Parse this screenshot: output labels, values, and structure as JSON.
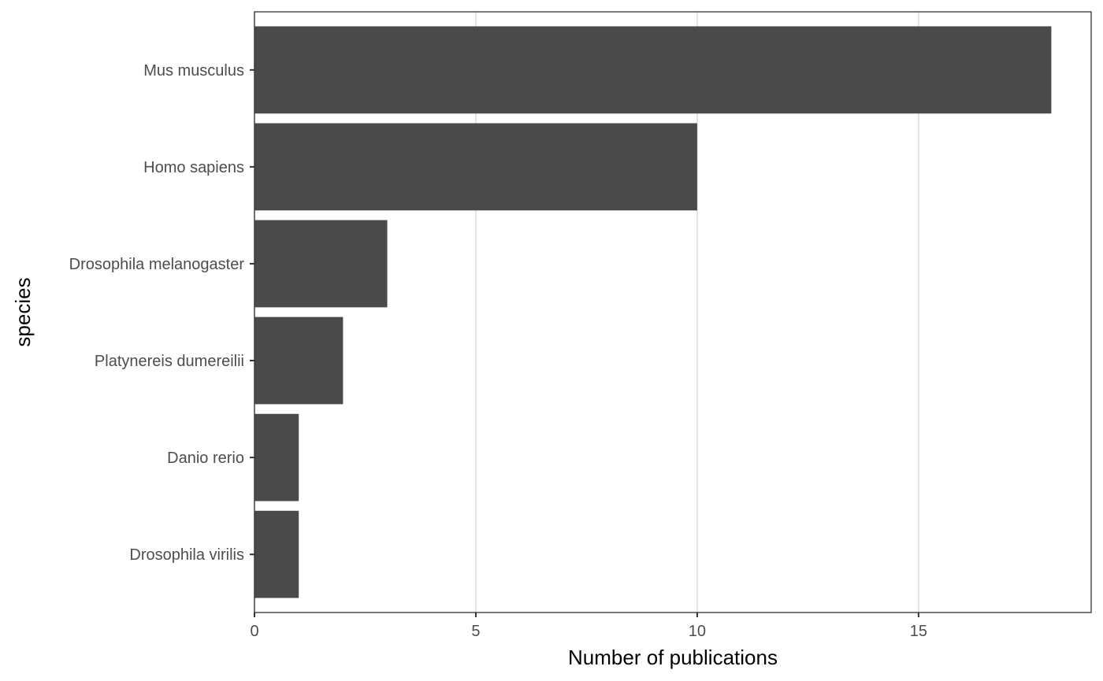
{
  "chart_data": {
    "type": "bar",
    "orientation": "horizontal",
    "categories": [
      "Mus musculus",
      "Homo sapiens",
      "Drosophila melanogaster",
      "Platynereis dumereilii",
      "Danio rerio",
      "Drosophila virilis"
    ],
    "values": [
      18,
      10,
      3,
      2,
      1,
      1
    ],
    "xlabel": "Number of publications",
    "ylabel": "species",
    "xlim": [
      0,
      18.9
    ],
    "xticks": [
      0,
      5,
      10,
      15
    ],
    "xtick_labels": [
      "0",
      "5",
      "10",
      "15"
    ],
    "grid": true,
    "legend": "none",
    "bar_color": "#4a4a4a",
    "grid_color": "#e3e3e3",
    "panel_border_color": "#333333"
  }
}
